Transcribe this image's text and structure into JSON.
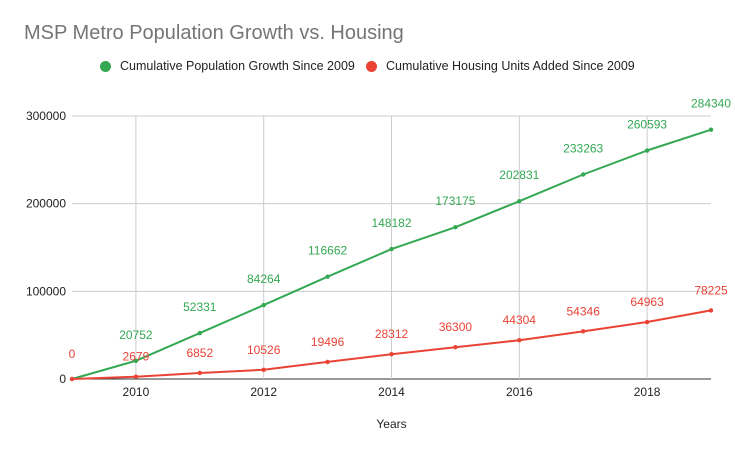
{
  "chart_data": {
    "type": "line",
    "title": "MSP Metro Population Growth vs. Housing",
    "xlabel": "Years",
    "ylabel": "",
    "x": [
      2009,
      2010,
      2011,
      2012,
      2013,
      2014,
      2015,
      2016,
      2017,
      2018,
      2019
    ],
    "xlim": [
      2009,
      2019
    ],
    "ylim": [
      0,
      300000
    ],
    "x_ticks": [
      "2010",
      "2012",
      "2014",
      "2016",
      "2018"
    ],
    "y_ticks": [
      "0",
      "100000",
      "200000",
      "300000"
    ],
    "grid": true,
    "legend_position": "top",
    "series": [
      {
        "name": "Cumulative Population Growth Since 2009",
        "color": "#34a853",
        "values": [
          0,
          20752,
          52331,
          84264,
          116662,
          148182,
          173175,
          202831,
          233263,
          260593,
          284340
        ],
        "labels": [
          "",
          "20752",
          "52331",
          "84264",
          "116662",
          "148182",
          "173175",
          "202831",
          "233263",
          "260593",
          "284340"
        ]
      },
      {
        "name": "Cumulative Housing Units Added Since 2009",
        "color": "#ea4335",
        "values": [
          0,
          2679,
          6852,
          10526,
          19496,
          28312,
          36300,
          44304,
          54346,
          64963,
          78225
        ],
        "labels": [
          "0",
          "2679",
          "6852",
          "10526",
          "19496",
          "28312",
          "36300",
          "44304",
          "54346",
          "64963",
          "78225"
        ]
      }
    ]
  }
}
